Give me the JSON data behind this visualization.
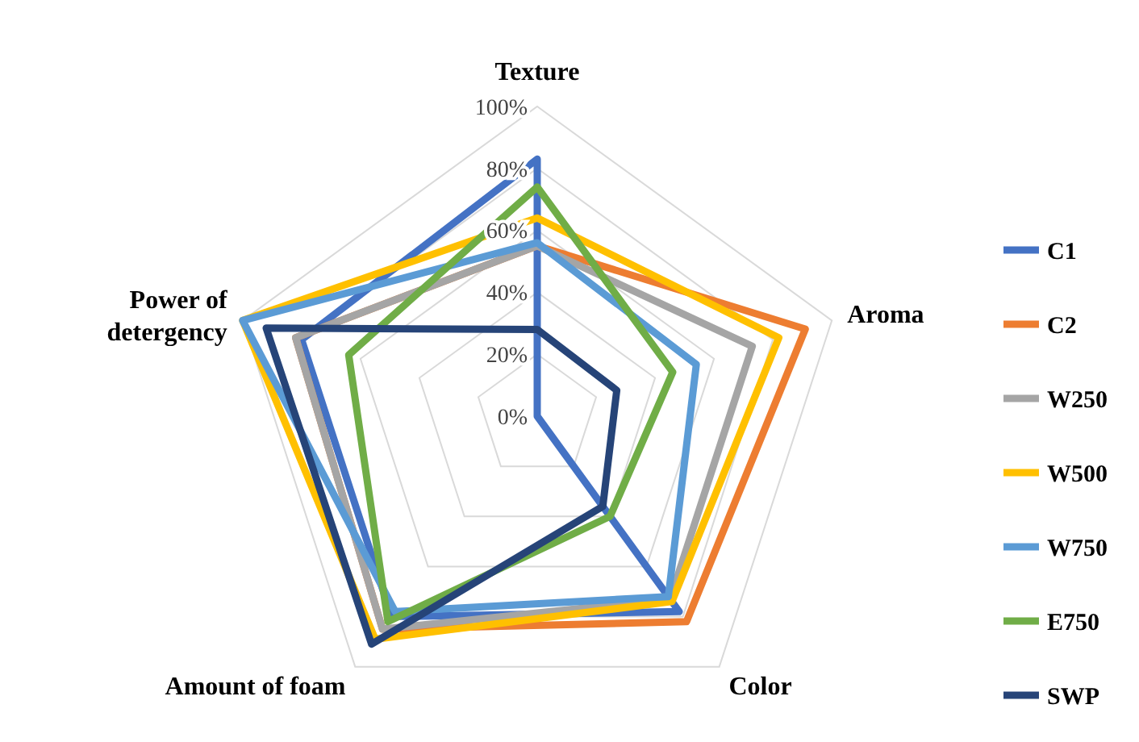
{
  "chart_data": {
    "type": "radar",
    "categories": [
      "Texture",
      "Aroma",
      "Color",
      "Amount of foam",
      "Power of\ndetergency"
    ],
    "ylim": [
      0,
      100
    ],
    "yticks": [
      {
        "value": 0,
        "label": "0%"
      },
      {
        "value": 20,
        "label": "20%"
      },
      {
        "value": 40,
        "label": "40%"
      },
      {
        "value": 60,
        "label": "60%"
      },
      {
        "value": 80,
        "label": "80%"
      },
      {
        "value": 100,
        "label": "100%"
      }
    ],
    "grid": true,
    "legend": "right",
    "marker": "none",
    "line_style": "solid",
    "series": [
      {
        "name": "C1",
        "color": "#4472c4",
        "values": [
          83,
          0,
          78,
          80,
          80
        ]
      },
      {
        "name": "C2",
        "color": "#ed7d31",
        "values": [
          55,
          91,
          82,
          85,
          82
        ]
      },
      {
        "name": "W250",
        "color": "#a5a5a5",
        "values": [
          55,
          73,
          73,
          85,
          82
        ]
      },
      {
        "name": "W500",
        "color": "#ffc000",
        "values": [
          64,
          82,
          74,
          89,
          100
        ]
      },
      {
        "name": "W750",
        "color": "#5b9bd5",
        "values": [
          56,
          54,
          72,
          78,
          100
        ]
      },
      {
        "name": "E750",
        "color": "#70ad47",
        "values": [
          74,
          46,
          40,
          82,
          64
        ]
      },
      {
        "name": "SWP",
        "color": "#264478",
        "values": [
          28,
          27,
          36,
          91,
          92
        ]
      }
    ]
  }
}
